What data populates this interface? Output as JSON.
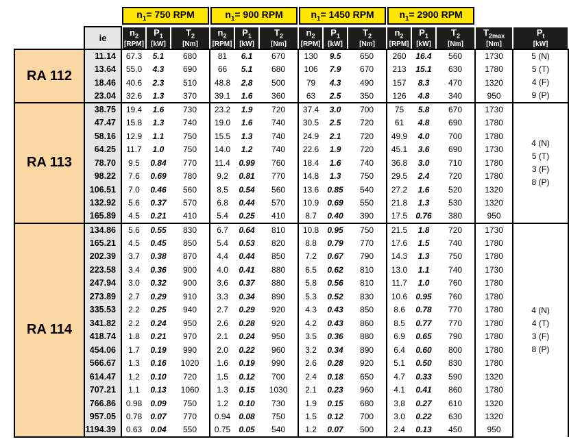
{
  "colors": {
    "header_yellow": "#ffe500",
    "header_dark": "#1d1d1b",
    "ie_gray": "#e6e6e6",
    "group_peach": "#fbd7a3",
    "border": "#000000"
  },
  "header": {
    "rpm_cells": [
      {
        "sym": "n",
        "sub": "1",
        "eq": "= ",
        "value": "750",
        "unit": " RPM"
      },
      {
        "sym": "n",
        "sub": "1",
        "eq": "= ",
        "value": "900",
        "unit": " RPM"
      },
      {
        "sym": "n",
        "sub": "1",
        "eq": "= ",
        "value": "1450",
        "unit": " RPM"
      },
      {
        "sym": "n",
        "sub": "1",
        "eq": "= ",
        "value": "2900",
        "unit": " RPM"
      }
    ],
    "ie_label": "ie",
    "sub_cols": [
      {
        "sym": "n",
        "sub": "2",
        "unit": "[RPM]"
      },
      {
        "sym": "P",
        "sub": "1",
        "unit": "[kW]"
      },
      {
        "sym": "T",
        "sub": "2",
        "unit": "[Nm]"
      }
    ],
    "t2max": {
      "sym": "T",
      "sub": "2max",
      "unit": "[Nm]"
    },
    "pt": {
      "sym": "P",
      "sub": "t",
      "unit": "[kW]"
    }
  },
  "groups": [
    {
      "name": "RA 112",
      "pt_lines": [
        "5 (N)",
        "5 (T)",
        "4 (F)",
        "9 (P)"
      ],
      "rows": [
        {
          "ie": "11.14",
          "cells": [
            "67.3",
            "5.1",
            "680",
            "81",
            "6.1",
            "670",
            "130",
            "9.5",
            "650",
            "260",
            "16.4",
            "560"
          ],
          "t2max": "1730"
        },
        {
          "ie": "13.64",
          "cells": [
            "55.0",
            "4.3",
            "690",
            "66",
            "5.1",
            "680",
            "106",
            "7.9",
            "670",
            "213",
            "15.1",
            "630"
          ],
          "t2max": "1780"
        },
        {
          "ie": "18.46",
          "cells": [
            "40.6",
            "2.3",
            "510",
            "48.8",
            "2.8",
            "500",
            "79",
            "4.3",
            "490",
            "157",
            "8.3",
            "470"
          ],
          "t2max": "1320"
        },
        {
          "ie": "23.04",
          "cells": [
            "32.6",
            "1.3",
            "370",
            "39.1",
            "1.6",
            "360",
            "63",
            "2.5",
            "350",
            "126",
            "4.8",
            "340"
          ],
          "t2max": "950"
        }
      ]
    },
    {
      "name": "RA 113",
      "pt_lines": [
        "4 (N)",
        "5 (T)",
        "3 (F)",
        "8 (P)"
      ],
      "rows": [
        {
          "ie": "38.75",
          "cells": [
            "19.4",
            "1.6",
            "730",
            "23.2",
            "1.9",
            "720",
            "37.4",
            "3.0",
            "700",
            "75",
            "5.8",
            "670"
          ],
          "t2max": "1730"
        },
        {
          "ie": "47.47",
          "cells": [
            "15.8",
            "1.3",
            "740",
            "19.0",
            "1.6",
            "740",
            "30.5",
            "2.5",
            "720",
            "61",
            "4.8",
            "690"
          ],
          "t2max": "1780"
        },
        {
          "ie": "58.16",
          "cells": [
            "12.9",
            "1.1",
            "750",
            "15.5",
            "1.3",
            "740",
            "24.9",
            "2.1",
            "720",
            "49.9",
            "4.0",
            "700"
          ],
          "t2max": "1780"
        },
        {
          "ie": "64.25",
          "cells": [
            "11.7",
            "1.0",
            "750",
            "14.0",
            "1.2",
            "740",
            "22.6",
            "1.9",
            "720",
            "45.1",
            "3.6",
            "690"
          ],
          "t2max": "1730"
        },
        {
          "ie": "78.70",
          "cells": [
            "9.5",
            "0.84",
            "770",
            "11.4",
            "0.99",
            "760",
            "18.4",
            "1.6",
            "740",
            "36.8",
            "3.0",
            "710"
          ],
          "t2max": "1780"
        },
        {
          "ie": "98.22",
          "cells": [
            "7.6",
            "0.69",
            "780",
            "9.2",
            "0.81",
            "770",
            "14.8",
            "1.3",
            "750",
            "29.5",
            "2.4",
            "720"
          ],
          "t2max": "1780"
        },
        {
          "ie": "106.51",
          "cells": [
            "7.0",
            "0.46",
            "560",
            "8.5",
            "0.54",
            "560",
            "13.6",
            "0.85",
            "540",
            "27.2",
            "1.6",
            "520"
          ],
          "t2max": "1320"
        },
        {
          "ie": "132.92",
          "cells": [
            "5.6",
            "0.37",
            "570",
            "6.8",
            "0.44",
            "570",
            "10.9",
            "0.69",
            "550",
            "21.8",
            "1.3",
            "530"
          ],
          "t2max": "1320"
        },
        {
          "ie": "165.89",
          "cells": [
            "4.5",
            "0.21",
            "410",
            "5.4",
            "0.25",
            "410",
            "8.7",
            "0.40",
            "390",
            "17.5",
            "0.76",
            "380"
          ],
          "t2max": "950"
        }
      ]
    },
    {
      "name": "RA 114",
      "pt_lines": [
        "4 (N)",
        "4 (T)",
        "3 (F)",
        "8 (P)"
      ],
      "rows": [
        {
          "ie": "134.86",
          "cells": [
            "5.6",
            "0.55",
            "830",
            "6.7",
            "0.64",
            "810",
            "10.8",
            "0.95",
            "750",
            "21.5",
            "1.8",
            "720"
          ],
          "t2max": "1730"
        },
        {
          "ie": "165.21",
          "cells": [
            "4.5",
            "0.45",
            "850",
            "5.4",
            "0.53",
            "820",
            "8.8",
            "0.79",
            "770",
            "17.6",
            "1.5",
            "740"
          ],
          "t2max": "1780"
        },
        {
          "ie": "202.39",
          "cells": [
            "3.7",
            "0.38",
            "870",
            "4.4",
            "0.44",
            "850",
            "7.2",
            "0.67",
            "790",
            "14.3",
            "1.3",
            "750"
          ],
          "t2max": "1780"
        },
        {
          "ie": "223.58",
          "cells": [
            "3.4",
            "0.36",
            "900",
            "4.0",
            "0.41",
            "880",
            "6.5",
            "0.62",
            "810",
            "13.0",
            "1.1",
            "740"
          ],
          "t2max": "1730"
        },
        {
          "ie": "247.94",
          "cells": [
            "3.0",
            "0.32",
            "900",
            "3.6",
            "0.37",
            "880",
            "5.8",
            "0.56",
            "810",
            "11.7",
            "1.0",
            "760"
          ],
          "t2max": "1780"
        },
        {
          "ie": "273.89",
          "cells": [
            "2.7",
            "0.29",
            "910",
            "3.3",
            "0.34",
            "890",
            "5.3",
            "0.52",
            "830",
            "10.6",
            "0.95",
            "760"
          ],
          "t2max": "1780"
        },
        {
          "ie": "335.53",
          "cells": [
            "2.2",
            "0.25",
            "940",
            "2.7",
            "0.29",
            "920",
            "4.3",
            "0.43",
            "850",
            "8.6",
            "0.78",
            "770"
          ],
          "t2max": "1780"
        },
        {
          "ie": "341.82",
          "cells": [
            "2.2",
            "0.24",
            "950",
            "2.6",
            "0.28",
            "920",
            "4.2",
            "0.43",
            "860",
            "8.5",
            "0.77",
            "770"
          ],
          "t2max": "1780"
        },
        {
          "ie": "418.74",
          "cells": [
            "1.8",
            "0.21",
            "970",
            "2.1",
            "0.24",
            "950",
            "3.5",
            "0.36",
            "880",
            "6.9",
            "0.65",
            "790"
          ],
          "t2max": "1780"
        },
        {
          "ie": "454.06",
          "cells": [
            "1.7",
            "0.19",
            "990",
            "2.0",
            "0.22",
            "960",
            "3.2",
            "0.34",
            "890",
            "6.4",
            "0.60",
            "800"
          ],
          "t2max": "1780"
        },
        {
          "ie": "566.67",
          "cells": [
            "1.3",
            "0.16",
            "1020",
            "1.6",
            "0.19",
            "990",
            "2.6",
            "0.28",
            "920",
            "5.1",
            "0.50",
            "830"
          ],
          "t2max": "1780"
        },
        {
          "ie": "614.47",
          "cells": [
            "1.2",
            "0.10",
            "720",
            "1.5",
            "0.12",
            "700",
            "2.4",
            "0.18",
            "650",
            "4.7",
            "0.33",
            "590"
          ],
          "t2max": "1320"
        },
        {
          "ie": "707.21",
          "cells": [
            "1.1",
            "0.13",
            "1060",
            "1.3",
            "0.15",
            "1030",
            "2.1",
            "0.23",
            "960",
            "4.1",
            "0.41",
            "860"
          ],
          "t2max": "1780"
        },
        {
          "ie": "766.86",
          "cells": [
            "0.98",
            "0.09",
            "750",
            "1.2",
            "0.10",
            "730",
            "1.9",
            "0.15",
            "680",
            "3.8",
            "0.27",
            "610"
          ],
          "t2max": "1320"
        },
        {
          "ie": "957.05",
          "cells": [
            "0.78",
            "0.07",
            "770",
            "0.94",
            "0.08",
            "750",
            "1.5",
            "0.12",
            "700",
            "3.0",
            "0.22",
            "630"
          ],
          "t2max": "1320"
        },
        {
          "ie": "1194.39",
          "cells": [
            "0.63",
            "0.04",
            "550",
            "0.75",
            "0.05",
            "540",
            "1.2",
            "0.07",
            "500",
            "2.4",
            "0.13",
            "450"
          ],
          "t2max": "950"
        }
      ]
    }
  ]
}
